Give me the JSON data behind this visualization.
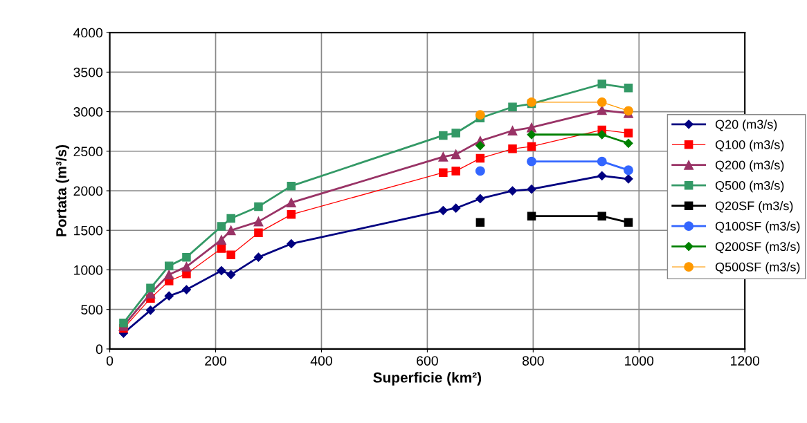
{
  "chart_data": {
    "type": "line",
    "xlabel": "Superficie (km²)",
    "ylabel": "Portata (m³/s)",
    "xlim": [
      0,
      1200
    ],
    "xticks": [
      0,
      200,
      400,
      600,
      800,
      1000,
      1200
    ],
    "ylim": [
      0,
      4000
    ],
    "yticks": [
      0,
      500,
      1000,
      1500,
      2000,
      2500,
      3000,
      3500,
      4000
    ],
    "grid": true,
    "legend": "right",
    "x": [
      26,
      77,
      112,
      145,
      211,
      229,
      281,
      343,
      630,
      654,
      700,
      761,
      797,
      930,
      980
    ],
    "series": [
      {
        "name": "Q20 (m3/s)",
        "color": "#000080",
        "marker": "diamond",
        "values": [
          200,
          490,
          670,
          750,
          990,
          940,
          1160,
          1330,
          1750,
          1780,
          1900,
          2000,
          2020,
          2190,
          2150
        ]
      },
      {
        "name": "Q100 (m3/s)",
        "color": "#ff0000",
        "marker": "square",
        "values": [
          260,
          640,
          860,
          950,
          1270,
          1190,
          1470,
          1700,
          2230,
          2250,
          2410,
          2530,
          2560,
          2770,
          2730
        ]
      },
      {
        "name": "Q200 (m3/s)",
        "color": "#993366",
        "marker": "triangle",
        "values": [
          290,
          700,
          940,
          1040,
          1380,
          1500,
          1610,
          1850,
          2430,
          2460,
          2630,
          2760,
          2800,
          3020,
          2980
        ]
      },
      {
        "name": "Q500 (m3/s)",
        "color": "#339966",
        "marker": "square",
        "values": [
          330,
          770,
          1050,
          1160,
          1550,
          1650,
          1800,
          2060,
          2700,
          2730,
          2920,
          3060,
          3100,
          3350,
          3300
        ]
      },
      {
        "name": "Q20SF (m3/s)",
        "color": "#000000",
        "marker": "square",
        "x": [
          700,
          761,
          797,
          930,
          980
        ],
        "values": [
          1600,
          null,
          1680,
          1680,
          1600
        ]
      },
      {
        "name": "Q100SF (m3/s)",
        "color": "#3366ff",
        "marker": "circle",
        "x": [
          700,
          761,
          797,
          930,
          980
        ],
        "values": [
          2250,
          null,
          2370,
          2370,
          2260
        ]
      },
      {
        "name": "Q200SF (m3/s)",
        "color": "#008000",
        "marker": "diamond",
        "x": [
          700,
          761,
          797,
          930,
          980
        ],
        "values": [
          2570,
          null,
          2710,
          2710,
          2600
        ]
      },
      {
        "name": "Q500SF (m3/s)",
        "color": "#ff9900",
        "marker": "circle",
        "x": [
          700,
          761,
          797,
          930,
          980
        ],
        "values": [
          2960,
          null,
          3120,
          3120,
          3010
        ]
      }
    ]
  }
}
